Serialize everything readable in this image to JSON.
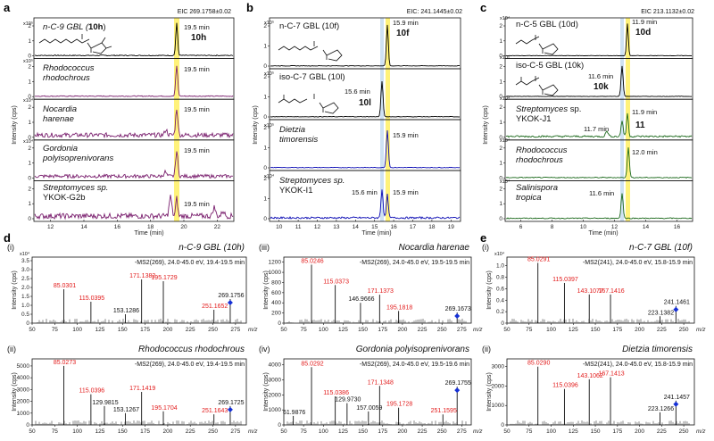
{
  "colors": {
    "highlight": "#fff27a",
    "highlight_blue": "#cfe2f3",
    "trace_a_std": "#000000",
    "trace_a": "#7a1f6e",
    "trace_b": "#0a0ab4",
    "trace_c": "#1e6b1e",
    "red": "#e21a1a",
    "black": "#111111",
    "diamond": "#1530d6"
  },
  "panels": {
    "a": {
      "label": "a",
      "eic": "EIC 269.1758±0.02",
      "xlabel": "Time (min)",
      "ylabel": "Intensity (cps)",
      "xticks": [
        "12",
        "14",
        "16",
        "18",
        "20",
        "22"
      ]
    },
    "b": {
      "label": "b",
      "eic": "EIC: 241.1445±0.02",
      "xlabel": "Time (min)",
      "ylabel": "Intensity (cps)",
      "xticks": [
        "10",
        "11",
        "12",
        "13",
        "14",
        "15",
        "16",
        "17",
        "18",
        "19"
      ]
    },
    "c": {
      "label": "c",
      "eic": "EIC 213.1132±0.02",
      "xlabel": "Time (min)",
      "ylabel": "Intensity (cps)",
      "xticks": [
        "6",
        "8",
        "10",
        "12",
        "14",
        "16"
      ]
    },
    "d": {
      "label": "d"
    },
    "e": {
      "label": "e"
    }
  },
  "traces_a": [
    {
      "name1": "n-C-9 GBL (",
      "cpd": "10h",
      "name2": ")",
      "rt": "19.5 min",
      "mult": "x10⁵"
    },
    {
      "name1": "Rhodococcus",
      "name2": "rhodochrous",
      "rt": "19.5 min",
      "mult": "x10⁵",
      "yt": [
        "0",
        "1"
      ]
    },
    {
      "name1": "Nocardia",
      "name2": "harenae",
      "rt": "19.5 min",
      "mult": "x10⁴",
      "yt": [
        "0",
        "1",
        "2"
      ]
    },
    {
      "name1": "Gordonia",
      "name2": "polyisoprenivorans",
      "rt": "19.5 min",
      "mult": "x10⁴",
      "yt": [
        "0",
        "1",
        "2"
      ]
    },
    {
      "name1": "Streptomyces sp.",
      "name2": "YKOK-G2b",
      "rt": "19.5 min",
      "yt": [
        "0",
        "4000"
      ]
    }
  ],
  "traces_b": [
    {
      "name": "n-C-7 GBL (10f)",
      "rt": "15.9 min",
      "cpd": "10f",
      "mult": "x10⁵"
    },
    {
      "name": "iso-C-7 GBL (10l)",
      "rt": "15.6 min",
      "cpd": "10l",
      "mult": "x10⁵"
    },
    {
      "name1": "Dietzia",
      "name2": "timorensis",
      "rt": "15.9 min",
      "mult": "x10⁵"
    },
    {
      "name1": "Streptomyces sp.",
      "name2": "YKOK-I1",
      "rt1": "15.6 min",
      "rt2": "15.9 min",
      "mult": "x10⁴",
      "yt": [
        "0",
        "1",
        "2",
        "3"
      ]
    }
  ],
  "traces_c": [
    {
      "name": "n-C-5 GBL (10d)",
      "rt": "11.9 min",
      "cpd": "10d",
      "mult": "x10⁴"
    },
    {
      "name": "iso-C-5 GBL (10k)",
      "rt": "11.6 min",
      "cpd": "10k",
      "mult": "x10⁵"
    },
    {
      "name1": "Streptomyces",
      "name2": "sp.",
      "name3": "YKOK-J1",
      "rt1": "11.7 min",
      "rt2": "11.9 min",
      "cpd": "11",
      "mult": "x10⁴"
    },
    {
      "name1": "Rhodococcus",
      "name2": "rhodochrous",
      "rt": "12.0 min",
      "mult": "x10⁴"
    },
    {
      "name1": "Salinispora",
      "name2": "tropica",
      "rt": "11.6 min",
      "mult": "x10⁴"
    }
  ],
  "ms_spectra": [
    {
      "sub": "(i)",
      "title": "n-C-9 GBL (10h)",
      "hdr": "-MS2(269), 24.0-45.0 eV, 19.4-19.5 min",
      "mult": "x10⁴",
      "yticks": [
        "0",
        "0.5",
        "1.0",
        "1.5",
        "2.0",
        "2.5",
        "3.0",
        "3.5"
      ],
      "ymax": 3.7,
      "peaks": [
        [
          85.0301,
          1.9,
          "r"
        ],
        [
          115.0395,
          1.2,
          "r"
        ],
        [
          153.1286,
          0.5,
          "k"
        ],
        [
          171.1382,
          2.45,
          "r"
        ],
        [
          195.1729,
          2.35,
          "r"
        ],
        [
          251.1652,
          0.75,
          "r"
        ],
        [
          269.1756,
          1.35,
          "k"
        ]
      ]
    },
    {
      "sub": "(ii)",
      "title": "Rhodococcus rhodochrous",
      "hdr": "-MS2(269), 24.0-45.0 eV, 19.4-19.5 min",
      "yticks": [
        "0",
        "1000",
        "2000",
        "3000",
        "4000",
        "5000"
      ],
      "ymax": 5600,
      "peaks": [
        [
          85.0273,
          5000,
          "r"
        ],
        [
          115.0396,
          2600,
          "r"
        ],
        [
          129.9815,
          1600,
          "k"
        ],
        [
          153.1267,
          1000,
          "k"
        ],
        [
          171.1419,
          2800,
          "r"
        ],
        [
          195.1704,
          1150,
          "r"
        ],
        [
          251.1643,
          900,
          "r"
        ],
        [
          269.1725,
          1600,
          "k"
        ]
      ]
    },
    {
      "sub": "(iii)",
      "title": "Nocardia harenae",
      "hdr": "-MS2(269), 24.0-45.0 eV, 19.5-19.5 min",
      "yticks": [
        "0",
        "200",
        "400",
        "600",
        "800",
        "1000",
        "1200"
      ],
      "ymax": 1300,
      "peaks": [
        [
          85.0246,
          1150,
          "r"
        ],
        [
          115.0373,
          750,
          "r"
        ],
        [
          146.9666,
          400,
          "k"
        ],
        [
          171.1373,
          560,
          "r"
        ],
        [
          195.1818,
          240,
          "r"
        ],
        [
          269.1673,
          210,
          "k"
        ]
      ]
    },
    {
      "sub": "(iv)",
      "title": "Gordonia polyisoprenivorans",
      "hdr": "-MS2(269), 24.0-45.0 eV, 19.5-19.6 min",
      "yticks": [
        "0",
        "1000",
        "2000",
        "3000",
        "4000"
      ],
      "ymax": 4400,
      "peaks": [
        [
          61.9876,
          600,
          "k"
        ],
        [
          85.0292,
          3850,
          "r"
        ],
        [
          115.0386,
          1900,
          "r"
        ],
        [
          129.973,
          1450,
          "k"
        ],
        [
          157.0059,
          900,
          "k"
        ],
        [
          171.1348,
          2600,
          "r"
        ],
        [
          195.1728,
          1150,
          "r"
        ],
        [
          251.1595,
          700,
          "r"
        ],
        [
          269.1755,
          2550,
          "k"
        ]
      ]
    },
    {
      "sub": "(i)",
      "title": "n-C-7 GBL (10f)",
      "hdr": "-MS2(241), 24.0-45.0 eV, 15.8-15.9 min",
      "mult": "x10⁴",
      "yticks": [
        "0",
        "0.2",
        "0.4",
        "0.6",
        "0.8",
        "1.0"
      ],
      "ymax": 1.15,
      "peaks": [
        [
          85.0291,
          1.05,
          "r"
        ],
        [
          115.0397,
          0.7,
          "r"
        ],
        [
          143.1077,
          0.5,
          "r"
        ],
        [
          167.1416,
          0.5,
          "r"
        ],
        [
          223.1382,
          0.12,
          "k"
        ],
        [
          241.1461,
          0.3,
          "k"
        ]
      ]
    },
    {
      "sub": "(ii)",
      "title": "Dietzia timorensis",
      "hdr": "-MS2(241), 24.0-45.0 eV, 15.8-15.9 min",
      "yticks": [
        "0",
        "1000",
        "2000",
        "3000"
      ],
      "ymax": 3400,
      "peaks": [
        [
          85.029,
          3000,
          "r"
        ],
        [
          115.0396,
          1850,
          "r"
        ],
        [
          143.1062,
          2350,
          "r"
        ],
        [
          167.1413,
          2450,
          "r"
        ],
        [
          223.1266,
          650,
          "k"
        ],
        [
          241.1457,
          1250,
          "k"
        ]
      ]
    }
  ],
  "ms_xticks_269": [
    "50",
    "75",
    "100",
    "125",
    "150",
    "175",
    "200",
    "225",
    "250",
    "275"
  ],
  "ms_xticks_241": [
    "50",
    "75",
    "100",
    "125",
    "150",
    "175",
    "200",
    "225",
    "250"
  ],
  "ms_xlabel": "m/z",
  "ms_ylabel": "Intensity (cps)"
}
